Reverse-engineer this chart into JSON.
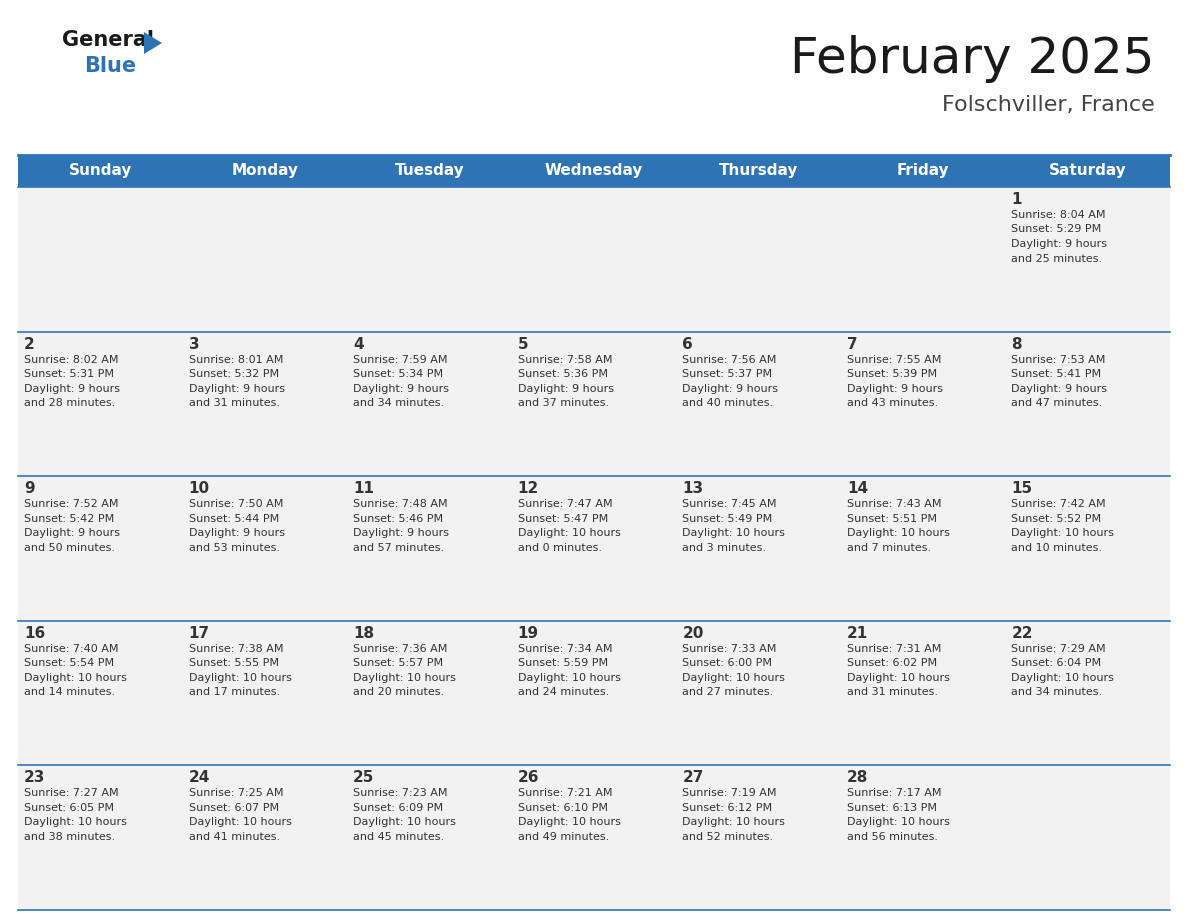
{
  "title": "February 2025",
  "subtitle": "Folschviller, France",
  "header_color": "#2E74B5",
  "header_text_color": "#FFFFFF",
  "cell_bg": "#F2F2F2",
  "row0_bg": "#F2F2F2",
  "separator_color": "#2E74B5",
  "text_color": "#333333",
  "day_names": [
    "Sunday",
    "Monday",
    "Tuesday",
    "Wednesday",
    "Thursday",
    "Friday",
    "Saturday"
  ],
  "days": [
    {
      "day": 1,
      "col": 6,
      "row": 0,
      "sunrise": "8:04 AM",
      "sunset": "5:29 PM",
      "daylight": "9 hours and 25 minutes."
    },
    {
      "day": 2,
      "col": 0,
      "row": 1,
      "sunrise": "8:02 AM",
      "sunset": "5:31 PM",
      "daylight": "9 hours and 28 minutes."
    },
    {
      "day": 3,
      "col": 1,
      "row": 1,
      "sunrise": "8:01 AM",
      "sunset": "5:32 PM",
      "daylight": "9 hours and 31 minutes."
    },
    {
      "day": 4,
      "col": 2,
      "row": 1,
      "sunrise": "7:59 AM",
      "sunset": "5:34 PM",
      "daylight": "9 hours and 34 minutes."
    },
    {
      "day": 5,
      "col": 3,
      "row": 1,
      "sunrise": "7:58 AM",
      "sunset": "5:36 PM",
      "daylight": "9 hours and 37 minutes."
    },
    {
      "day": 6,
      "col": 4,
      "row": 1,
      "sunrise": "7:56 AM",
      "sunset": "5:37 PM",
      "daylight": "9 hours and 40 minutes."
    },
    {
      "day": 7,
      "col": 5,
      "row": 1,
      "sunrise": "7:55 AM",
      "sunset": "5:39 PM",
      "daylight": "9 hours and 43 minutes."
    },
    {
      "day": 8,
      "col": 6,
      "row": 1,
      "sunrise": "7:53 AM",
      "sunset": "5:41 PM",
      "daylight": "9 hours and 47 minutes."
    },
    {
      "day": 9,
      "col": 0,
      "row": 2,
      "sunrise": "7:52 AM",
      "sunset": "5:42 PM",
      "daylight": "9 hours and 50 minutes."
    },
    {
      "day": 10,
      "col": 1,
      "row": 2,
      "sunrise": "7:50 AM",
      "sunset": "5:44 PM",
      "daylight": "9 hours and 53 minutes."
    },
    {
      "day": 11,
      "col": 2,
      "row": 2,
      "sunrise": "7:48 AM",
      "sunset": "5:46 PM",
      "daylight": "9 hours and 57 minutes."
    },
    {
      "day": 12,
      "col": 3,
      "row": 2,
      "sunrise": "7:47 AM",
      "sunset": "5:47 PM",
      "daylight": "10 hours and 0 minutes."
    },
    {
      "day": 13,
      "col": 4,
      "row": 2,
      "sunrise": "7:45 AM",
      "sunset": "5:49 PM",
      "daylight": "10 hours and 3 minutes."
    },
    {
      "day": 14,
      "col": 5,
      "row": 2,
      "sunrise": "7:43 AM",
      "sunset": "5:51 PM",
      "daylight": "10 hours and 7 minutes."
    },
    {
      "day": 15,
      "col": 6,
      "row": 2,
      "sunrise": "7:42 AM",
      "sunset": "5:52 PM",
      "daylight": "10 hours and 10 minutes."
    },
    {
      "day": 16,
      "col": 0,
      "row": 3,
      "sunrise": "7:40 AM",
      "sunset": "5:54 PM",
      "daylight": "10 hours and 14 minutes."
    },
    {
      "day": 17,
      "col": 1,
      "row": 3,
      "sunrise": "7:38 AM",
      "sunset": "5:55 PM",
      "daylight": "10 hours and 17 minutes."
    },
    {
      "day": 18,
      "col": 2,
      "row": 3,
      "sunrise": "7:36 AM",
      "sunset": "5:57 PM",
      "daylight": "10 hours and 20 minutes."
    },
    {
      "day": 19,
      "col": 3,
      "row": 3,
      "sunrise": "7:34 AM",
      "sunset": "5:59 PM",
      "daylight": "10 hours and 24 minutes."
    },
    {
      "day": 20,
      "col": 4,
      "row": 3,
      "sunrise": "7:33 AM",
      "sunset": "6:00 PM",
      "daylight": "10 hours and 27 minutes."
    },
    {
      "day": 21,
      "col": 5,
      "row": 3,
      "sunrise": "7:31 AM",
      "sunset": "6:02 PM",
      "daylight": "10 hours and 31 minutes."
    },
    {
      "day": 22,
      "col": 6,
      "row": 3,
      "sunrise": "7:29 AM",
      "sunset": "6:04 PM",
      "daylight": "10 hours and 34 minutes."
    },
    {
      "day": 23,
      "col": 0,
      "row": 4,
      "sunrise": "7:27 AM",
      "sunset": "6:05 PM",
      "daylight": "10 hours and 38 minutes."
    },
    {
      "day": 24,
      "col": 1,
      "row": 4,
      "sunrise": "7:25 AM",
      "sunset": "6:07 PM",
      "daylight": "10 hours and 41 minutes."
    },
    {
      "day": 25,
      "col": 2,
      "row": 4,
      "sunrise": "7:23 AM",
      "sunset": "6:09 PM",
      "daylight": "10 hours and 45 minutes."
    },
    {
      "day": 26,
      "col": 3,
      "row": 4,
      "sunrise": "7:21 AM",
      "sunset": "6:10 PM",
      "daylight": "10 hours and 49 minutes."
    },
    {
      "day": 27,
      "col": 4,
      "row": 4,
      "sunrise": "7:19 AM",
      "sunset": "6:12 PM",
      "daylight": "10 hours and 52 minutes."
    },
    {
      "day": 28,
      "col": 5,
      "row": 4,
      "sunrise": "7:17 AM",
      "sunset": "6:13 PM",
      "daylight": "10 hours and 56 minutes."
    }
  ],
  "num_rows": 5,
  "num_cols": 7,
  "title_fontsize": 36,
  "subtitle_fontsize": 16,
  "header_fontsize": 11,
  "day_num_fontsize": 11,
  "cell_text_fontsize": 8
}
